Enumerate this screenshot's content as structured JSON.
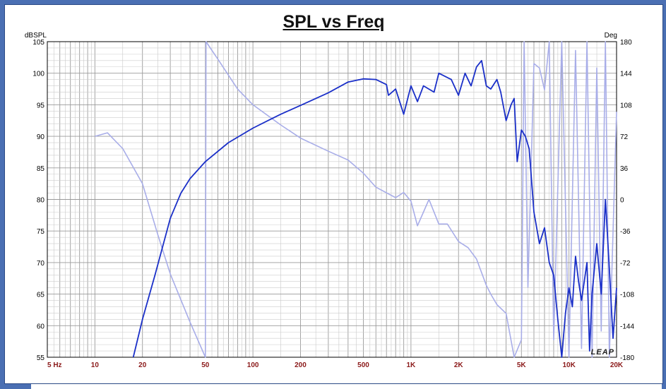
{
  "chart_data": {
    "type": "line",
    "title": "SPL vs Freq",
    "ylabel_left": "dBSPL",
    "ylabel_right": "Deg",
    "xscale": "log",
    "xlim": [
      5,
      20000
    ],
    "ylim_left": [
      55,
      105
    ],
    "ylim_right": [
      -180,
      180
    ],
    "grid": true,
    "x_tick_labels": [
      "5 Hz",
      "10",
      "20",
      "50",
      "100",
      "200",
      "500",
      "1K",
      "2K",
      "5K",
      "10K",
      "20K"
    ],
    "x_tick_values": [
      5,
      10,
      20,
      50,
      100,
      200,
      500,
      1000,
      2000,
      5000,
      10000,
      20000
    ],
    "y_left_ticks": [
      105,
      100,
      95,
      90,
      85,
      80,
      75,
      70,
      65,
      60,
      55
    ],
    "y_right_ticks": [
      180,
      144,
      108,
      72,
      36,
      0,
      -36,
      -72,
      -108,
      -144,
      -180
    ],
    "watermark": "LEAP",
    "series": [
      {
        "axis": "left",
        "color": "#1a2fc8",
        "points": [
          [
            17.5,
            55
          ],
          [
            20,
            61
          ],
          [
            24,
            68
          ],
          [
            30,
            77
          ],
          [
            35,
            81
          ],
          [
            40,
            83.3
          ],
          [
            50,
            86
          ],
          [
            70,
            89
          ],
          [
            100,
            91.3
          ],
          [
            150,
            93.5
          ],
          [
            200,
            94.9
          ],
          [
            300,
            96.9
          ],
          [
            400,
            98.6
          ],
          [
            500,
            99.1
          ],
          [
            600,
            99.0
          ],
          [
            700,
            98.2
          ],
          [
            720,
            96.5
          ],
          [
            800,
            97.5
          ],
          [
            900,
            93.5
          ],
          [
            1000,
            98
          ],
          [
            1100,
            95.5
          ],
          [
            1200,
            98
          ],
          [
            1400,
            97
          ],
          [
            1500,
            100
          ],
          [
            1800,
            99
          ],
          [
            2000,
            96.5
          ],
          [
            2200,
            100
          ],
          [
            2400,
            98
          ],
          [
            2600,
            101
          ],
          [
            2800,
            102
          ],
          [
            3000,
            98
          ],
          [
            3200,
            97.5
          ],
          [
            3500,
            99
          ],
          [
            3700,
            97
          ],
          [
            4000,
            92.5
          ],
          [
            4300,
            95
          ],
          [
            4500,
            96
          ],
          [
            4700,
            86
          ],
          [
            5000,
            91
          ],
          [
            5300,
            90
          ],
          [
            5600,
            88
          ],
          [
            6000,
            78
          ],
          [
            6500,
            73
          ],
          [
            7000,
            75.5
          ],
          [
            7500,
            70
          ],
          [
            8000,
            68
          ],
          [
            8500,
            61
          ],
          [
            9000,
            55
          ],
          [
            9500,
            62
          ],
          [
            10000,
            66
          ],
          [
            10500,
            63
          ],
          [
            11000,
            71
          ],
          [
            11500,
            67
          ],
          [
            12000,
            64
          ],
          [
            13000,
            70
          ],
          [
            13500,
            56
          ],
          [
            14000,
            65
          ],
          [
            15000,
            73
          ],
          [
            16000,
            65
          ],
          [
            17000,
            80
          ],
          [
            18000,
            69
          ],
          [
            19000,
            58
          ],
          [
            20000,
            66
          ]
        ]
      },
      {
        "axis": "right",
        "color": "#a8ade8",
        "points": [
          [
            10,
            72
          ],
          [
            12,
            76
          ],
          [
            15,
            58
          ],
          [
            20,
            18
          ],
          [
            25,
            -40
          ],
          [
            30,
            -85
          ],
          [
            40,
            -140
          ],
          [
            50,
            -180
          ],
          [
            50.5,
            180
          ],
          [
            60,
            160
          ],
          [
            80,
            126
          ],
          [
            100,
            108
          ],
          [
            150,
            85
          ],
          [
            200,
            70
          ],
          [
            300,
            55
          ],
          [
            400,
            45
          ],
          [
            500,
            30
          ],
          [
            600,
            14
          ],
          [
            800,
            2
          ],
          [
            900,
            8
          ],
          [
            1000,
            -2
          ],
          [
            1100,
            -30
          ],
          [
            1300,
            0
          ],
          [
            1500,
            -28
          ],
          [
            1700,
            -28
          ],
          [
            2000,
            -48
          ],
          [
            2300,
            -55
          ],
          [
            2600,
            -68
          ],
          [
            3000,
            -98
          ],
          [
            3200,
            -108
          ],
          [
            3500,
            -120
          ],
          [
            4000,
            -130
          ],
          [
            4500,
            -180
          ],
          [
            5000,
            -160
          ],
          [
            5200,
            180
          ],
          [
            5500,
            -100
          ],
          [
            6000,
            155
          ],
          [
            6500,
            150
          ],
          [
            7000,
            125
          ],
          [
            7500,
            180
          ],
          [
            8000,
            -160
          ],
          [
            9000,
            180
          ],
          [
            10000,
            -180
          ],
          [
            11000,
            170
          ],
          [
            12000,
            -170
          ],
          [
            13000,
            180
          ],
          [
            14000,
            -180
          ],
          [
            15000,
            150
          ],
          [
            16000,
            -150
          ],
          [
            17000,
            180
          ],
          [
            18000,
            -180
          ],
          [
            20000,
            100
          ]
        ]
      }
    ]
  }
}
